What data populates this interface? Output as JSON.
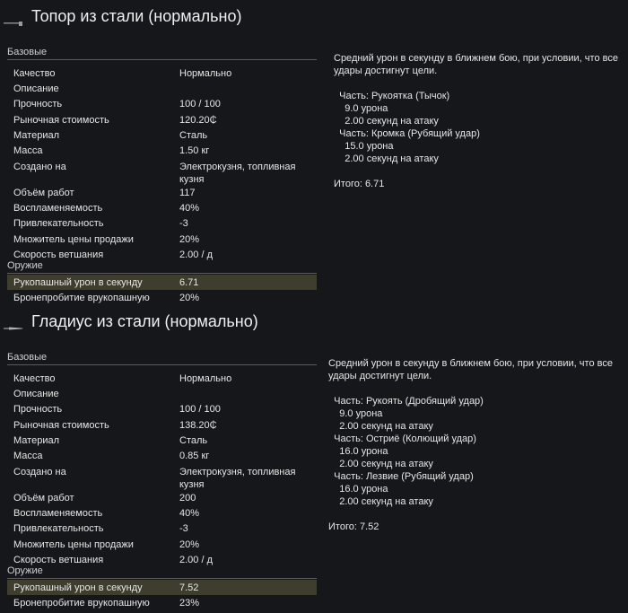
{
  "items": [
    {
      "title": "Топор из стали (нормально)",
      "icon": "axe-icon",
      "base_label": "Базовые",
      "base": [
        [
          "Качество",
          "Нормально"
        ],
        [
          "Описание",
          ""
        ],
        [
          "Прочность",
          "100 / 100"
        ],
        [
          "Рыночная стоимость",
          "120.20₵"
        ],
        [
          "Материал",
          "Сталь"
        ],
        [
          "Масса",
          "1.50 кг"
        ],
        [
          "Создано на",
          "Электрокузня, топливная кузня"
        ],
        [
          "Объём работ",
          "117"
        ],
        [
          "Воспламеняемость",
          "40%"
        ],
        [
          "Привлекательность",
          "-3"
        ],
        [
          "Множитель цены продажи",
          "20%"
        ],
        [
          "Скорость ветшания",
          "2.00 / д"
        ]
      ],
      "weapon_label": "Оружие",
      "weapon": [
        [
          "Рукопашный урон в секунду",
          "6.71"
        ],
        [
          "Бронепробитие врукопашную",
          "20%"
        ]
      ],
      "description": "Средний урон в секунду в ближнем бою, при условии, что все удары достигнут цели.\n\n  Часть: Рукоятка (Тычок)\n    9.0 урона\n    2.00 секунд на атаку\n  Часть: Кромка (Рубящий удар)\n    15.0 урона\n    2.00 секунд на атаку\n\nИтого: 6.71"
    },
    {
      "title": "Гладиус из стали (нормально)",
      "icon": "gladius-icon",
      "base_label": "Базовые",
      "base": [
        [
          "Качество",
          "Нормально"
        ],
        [
          "Описание",
          ""
        ],
        [
          "Прочность",
          "100 / 100"
        ],
        [
          "Рыночная стоимость",
          "138.20₵"
        ],
        [
          "Материал",
          "Сталь"
        ],
        [
          "Масса",
          "0.85 кг"
        ],
        [
          "Создано на",
          "Электрокузня, топливная кузня"
        ],
        [
          "Объём работ",
          "200"
        ],
        [
          "Воспламеняемость",
          "40%"
        ],
        [
          "Привлекательность",
          "-3"
        ],
        [
          "Множитель цены продажи",
          "20%"
        ],
        [
          "Скорость ветшания",
          "2.00 / д"
        ]
      ],
      "weapon_label": "Оружие",
      "weapon": [
        [
          "Рукопашный урон в секунду",
          "7.52"
        ],
        [
          "Бронепробитие врукопашную",
          "23%"
        ]
      ],
      "description": "Средний урон в секунду в ближнем бою, при условии, что все удары достигнут цели.\n\n  Часть: Рукоять (Дробящий удар)\n    9.0 урона\n    2.00 секунд на атаку\n  Часть: Остриё (Колющий удар)\n    16.0 урона\n    2.00 секунд на атаку\n  Часть: Лезвие (Рубящий удар)\n    16.0 урона\n    2.00 секунд на атаку\n\nИтого: 7.52"
    }
  ]
}
